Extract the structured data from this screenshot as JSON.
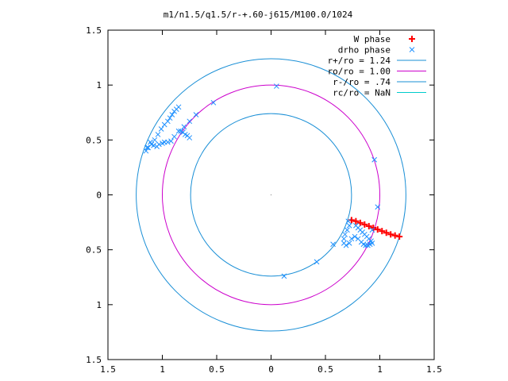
{
  "chart_data": {
    "type": "scatter",
    "title": "m1/n1.5/q1.5/r-+.60-j615/M100.0/1024",
    "xlabel": "",
    "ylabel": "",
    "xlim": [
      -1.5,
      1.5
    ],
    "ylim": [
      -1.5,
      1.5
    ],
    "aspect": "equal",
    "grid": false,
    "legend_position": "top-right",
    "x_tick_values": [
      -1.5,
      -1,
      -0.5,
      0,
      0.5,
      1,
      1.5
    ],
    "x_tick_labels": [
      "1.5",
      "1",
      "0.5",
      "0",
      "0.5",
      "1",
      "1.5"
    ],
    "y_tick_values": [
      1.5,
      1,
      0.5,
      0,
      -0.5,
      -1,
      -1.5
    ],
    "y_tick_labels": [
      "1.5",
      "1",
      "0.5",
      "0",
      "0.5",
      "1",
      "1.5"
    ],
    "colors": {
      "w_phase": "#ff0000",
      "drho_phase": "#1e90ff",
      "r_plus": "#1a8fd6",
      "ro": "#cc00cc",
      "r_minus": "#1a8fd6",
      "rc": "#00cccc",
      "axis": "#000000"
    },
    "series": [
      {
        "name": "W phase",
        "kind": "points",
        "marker": "plus",
        "x": [
          0.74,
          0.78,
          0.82,
          0.86,
          0.9,
          0.94,
          0.98,
          1.02,
          1.06,
          1.1,
          1.14,
          1.18
        ],
        "y": [
          -0.23,
          -0.24,
          -0.255,
          -0.27,
          -0.285,
          -0.3,
          -0.315,
          -0.33,
          -0.345,
          -0.36,
          -0.37,
          -0.38
        ]
      },
      {
        "name": "drho phase",
        "kind": "points",
        "marker": "cross",
        "x": [
          0.05,
          0.71,
          0.72,
          0.7,
          0.68,
          0.67,
          0.67,
          0.69,
          0.72,
          0.74,
          0.77,
          0.8,
          0.83,
          0.85,
          0.87,
          0.89,
          0.91,
          0.93,
          0.92,
          0.9,
          0.88,
          0.86,
          0.84,
          0.82,
          0.8,
          0.78,
          0.95,
          0.98,
          0.93,
          0.57,
          0.42,
          0.12,
          -0.53,
          -0.69,
          -0.75,
          -0.8,
          -0.85,
          -0.89,
          -0.92,
          -0.95,
          -0.98,
          -1.0,
          -1.03,
          -1.05,
          -1.08,
          -1.11,
          -1.14,
          -1.15,
          -1.13,
          -1.1,
          -1.07,
          -1.04,
          -1.01,
          -0.98,
          -0.95,
          -0.93,
          -0.91,
          -0.89,
          -0.87,
          -0.85,
          -0.83,
          -0.81,
          -0.79,
          -0.77,
          -0.75
        ],
        "y": [
          0.99,
          -0.24,
          -0.28,
          -0.32,
          -0.36,
          -0.4,
          -0.44,
          -0.46,
          -0.44,
          -0.4,
          -0.38,
          -0.4,
          -0.43,
          -0.45,
          -0.46,
          -0.46,
          -0.45,
          -0.44,
          -0.42,
          -0.4,
          -0.38,
          -0.36,
          -0.34,
          -0.32,
          -0.3,
          -0.28,
          0.32,
          -0.11,
          -0.32,
          -0.45,
          -0.61,
          -0.74,
          0.84,
          0.73,
          0.67,
          0.62,
          0.58,
          0.53,
          0.49,
          0.48,
          0.48,
          0.47,
          0.46,
          0.44,
          0.45,
          0.48,
          0.43,
          0.4,
          0.43,
          0.46,
          0.5,
          0.55,
          0.6,
          0.64,
          0.67,
          0.7,
          0.73,
          0.76,
          0.78,
          0.8,
          0.58,
          0.57,
          0.55,
          0.54,
          0.52
        ]
      },
      {
        "name": "r+/ro = 1.24",
        "kind": "circle",
        "radius": 1.24
      },
      {
        "name": "ro/ro = 1.00",
        "kind": "circle",
        "radius": 1.0
      },
      {
        "name": "r-/ro = .74",
        "kind": "circle",
        "radius": 0.74
      },
      {
        "name": "rc/ro = NaN",
        "kind": "circle",
        "radius": null
      }
    ]
  }
}
